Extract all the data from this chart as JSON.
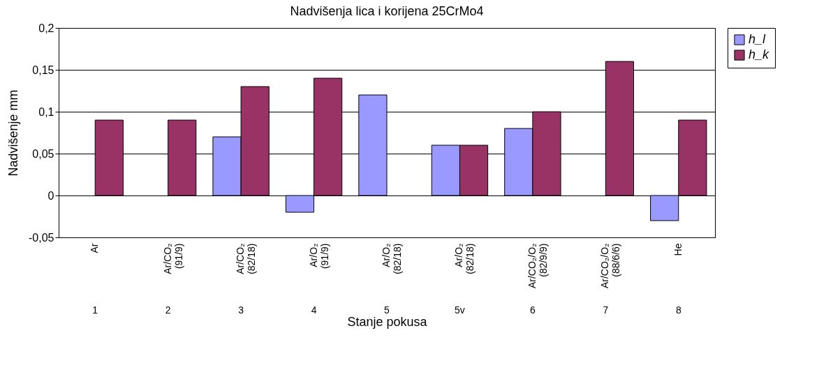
{
  "chart_data": {
    "type": "bar",
    "title": "Nadvišenja lica i  korijena 25CrMo4",
    "xlabel": "Stanje pokusa",
    "ylabel": "Nadvišenje mm",
    "categories": [
      "Ar",
      "Ar/CO₂\n(91/9)",
      "Ar/CO₂\n(82/18)",
      "Ar/O₂\n(91/9)",
      "Ar/O₂\n(82/18)",
      "Ar/O₂\n(82/18) ",
      "Ar/CO₂/O₂\n(82/9/9)",
      "Ar/CO₂/O₂\n(88/6/6)",
      "He"
    ],
    "series": [
      {
        "name": "h_l",
        "color": "#9999ff",
        "values": [
          null,
          null,
          0.07,
          -0.02,
          0.12,
          0.06,
          0.08,
          null,
          -0.03
        ]
      },
      {
        "name": "h_k",
        "color": "#993366",
        "values": [
          0.09,
          0.09,
          0.13,
          0.14,
          null,
          0.06,
          0.1,
          0.16,
          0.09
        ]
      }
    ],
    "ylim": [
      -0.05,
      0.2
    ],
    "yticks": [
      {
        "value": -0.05,
        "label": "-0,05"
      },
      0,
      {
        "value": 0.05,
        "label": "0,05"
      },
      {
        "value": 0.1,
        "label": "0,1"
      },
      {
        "value": 0.15,
        "label": "0,15"
      },
      {
        "value": 0.2,
        "label": "0,2"
      }
    ],
    "grid": "y",
    "legend": "right",
    "annotations": [
      "1",
      "2",
      "3",
      "4",
      "5",
      "5v",
      "6",
      "7",
      "8"
    ]
  }
}
